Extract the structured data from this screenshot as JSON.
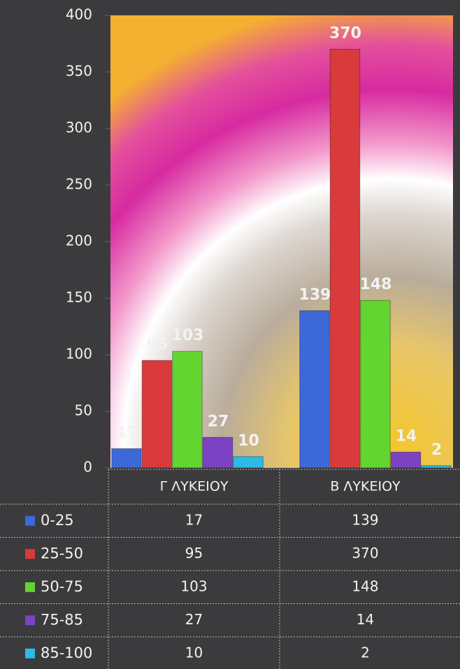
{
  "chart_data": {
    "type": "bar",
    "categories": [
      "Γ ΛΥΚΕΙΟΥ",
      "Β ΛΥΚΕΙΟΥ"
    ],
    "series": [
      {
        "name": "0-25",
        "color": "#3d68d8",
        "values": [
          17,
          139
        ]
      },
      {
        "name": "25-50",
        "color": "#d93a3c",
        "values": [
          95,
          370
        ]
      },
      {
        "name": "50-75",
        "color": "#62d531",
        "values": [
          103,
          148
        ]
      },
      {
        "name": "75-85",
        "color": "#7b42c4",
        "values": [
          27,
          14
        ]
      },
      {
        "name": "85-100",
        "color": "#2cbbe9",
        "values": [
          10,
          2
        ]
      }
    ],
    "ylim": [
      0,
      400
    ],
    "yticks": [
      0,
      50,
      100,
      150,
      200,
      250,
      300,
      350,
      400
    ],
    "data_table": true
  }
}
